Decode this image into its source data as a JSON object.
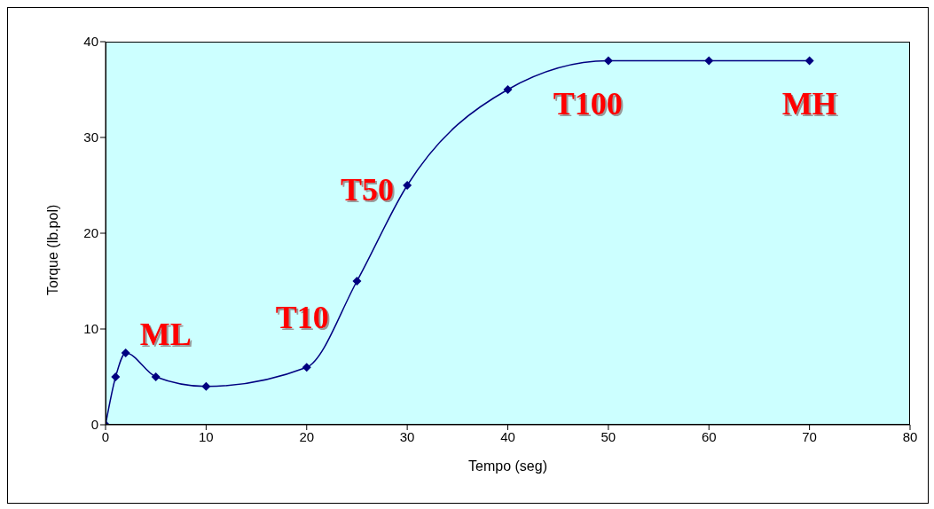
{
  "chart_data": {
    "type": "line",
    "xlabel": "Tempo (seg)",
    "ylabel": "Torque (lb.pol)",
    "x": [
      0,
      1,
      2,
      5,
      10,
      20,
      25,
      30,
      40,
      50,
      60,
      70
    ],
    "series": [
      {
        "color": "#000080",
        "values": [
          0,
          5,
          7.5,
          5,
          4,
          6,
          15,
          25,
          35,
          38,
          38,
          38
        ]
      }
    ],
    "xlim": [
      0,
      80
    ],
    "xticks": [
      0,
      10,
      20,
      30,
      40,
      50,
      60,
      70,
      80
    ],
    "ylim": [
      0,
      40
    ],
    "yticks": [
      0,
      10,
      20,
      30,
      40
    ],
    "grid": false,
    "legend": false,
    "marker": "diamond",
    "line_style": "solid",
    "annotations": [
      {
        "text": "ML",
        "x": 2,
        "y": 7.5
      },
      {
        "text": "T10",
        "x": 20,
        "y": 6
      },
      {
        "text": "T50",
        "x": 30,
        "y": 25
      },
      {
        "text": "T100",
        "x": 50,
        "y": 38
      },
      {
        "text": "MH",
        "x": 70,
        "y": 38
      }
    ]
  }
}
